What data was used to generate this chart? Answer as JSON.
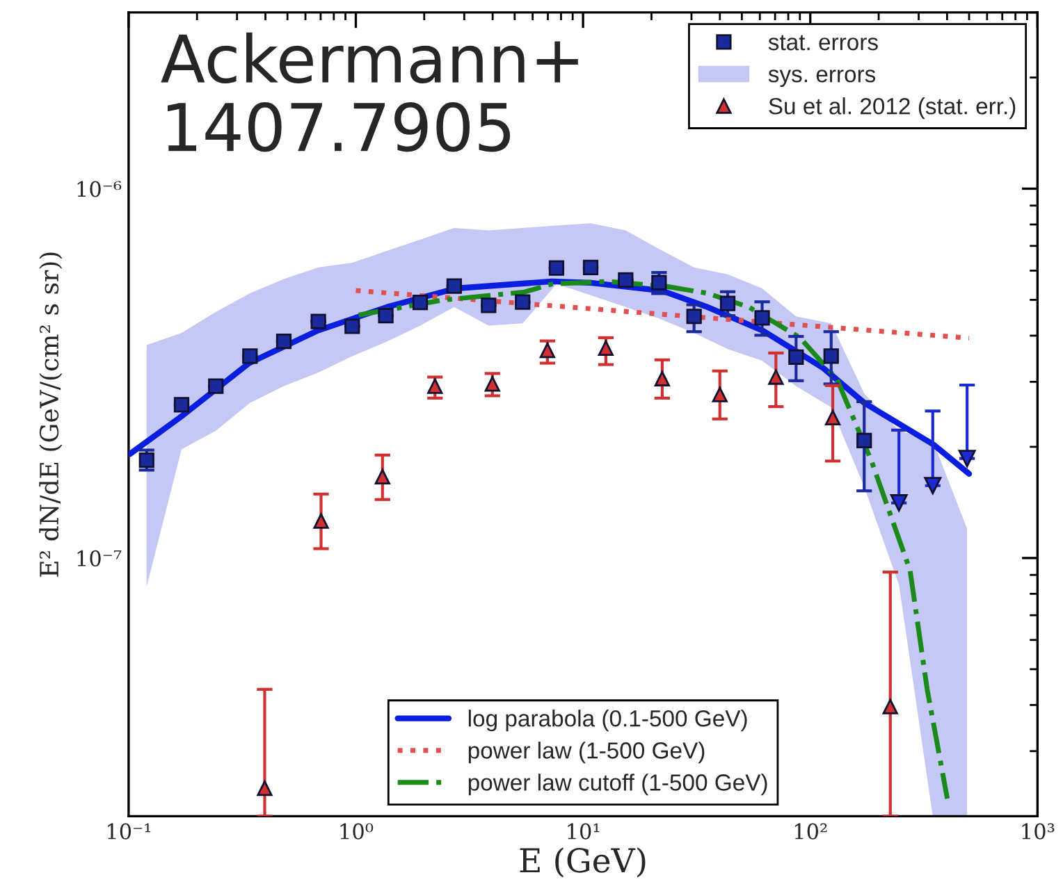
{
  "chart_data": {
    "type": "scatter",
    "xlabel": "E (GeV)",
    "ylabel": "E² dN/dE (GeV/(cm² s sr))",
    "log": "xy",
    "xlim": [
      0.1,
      1000
    ],
    "ylim": [
      2e-08,
      3e-06
    ],
    "xticks": [
      {
        "value": 0.1,
        "label": "10⁻¹"
      },
      {
        "value": 1,
        "label": "10⁰"
      },
      {
        "value": 10,
        "label": "10¹"
      },
      {
        "value": 100,
        "label": "10²"
      },
      {
        "value": 1000,
        "label": "10³"
      }
    ],
    "yticks": [
      {
        "value": 1e-07,
        "label": "10⁻⁷"
      },
      {
        "value": 1e-06,
        "label": "10⁻⁶"
      }
    ],
    "grid": false,
    "legend": [
      "top right",
      "bottom"
    ],
    "annotations": [
      "Ackermann+\n1407.7905"
    ],
    "series": [
      {
        "name": "stat. errors",
        "type": "scatter",
        "marker": "square",
        "color": "#1a2a9c",
        "x": [
          0.12,
          0.171,
          0.242,
          0.342,
          0.482,
          0.684,
          0.964,
          1.355,
          1.92,
          2.71,
          3.84,
          5.42,
          7.64,
          10.8,
          15.4,
          21.6,
          30.8,
          43.3,
          61.4,
          86.6,
          123.6,
          172.7
        ],
        "values": [
          1.84e-07,
          2.6e-07,
          2.92e-07,
          3.52e-07,
          3.86e-07,
          4.37e-07,
          4.24e-07,
          4.53e-07,
          4.92e-07,
          5.45e-07,
          4.83e-07,
          4.93e-07,
          6.1e-07,
          6.12e-07,
          5.66e-07,
          5.57e-07,
          4.51e-07,
          4.89e-07,
          4.47e-07,
          3.5e-07,
          3.52e-07,
          2.08e-07
        ],
        "errors": [
          [
            1.73e-07,
            1.96e-07
          ],
          null,
          null,
          null,
          null,
          null,
          null,
          null,
          null,
          null,
          null,
          null,
          null,
          null,
          null,
          [
            5.2e-07,
            5.93e-07
          ],
          [
            4.1e-07,
            4.85e-07
          ],
          [
            4.53e-07,
            5.26e-07
          ],
          [
            4.01e-07,
            4.94e-07
          ],
          [
            3.02e-07,
            3.98e-07
          ],
          [
            2.96e-07,
            4.1e-07
          ],
          [
            1.52e-07,
            2.65e-07
          ]
        ]
      },
      {
        "marker": "triangle",
        "color": "#1a2ad0",
        "x": [
          245.6,
          346,
          490
        ],
        "values": [
          1.41e-07,
          1.57e-07,
          1.86e-07
        ],
        "errors": [
          [
            1.41e-07,
            2.22e-07
          ],
          [
            1.57e-07,
            2.5e-07
          ],
          [
            1.86e-07,
            2.94e-07
          ]
        ]
      },
      {
        "name": "sys. errors",
        "type": "area",
        "color": "#c5c8f5",
        "x": [
          0.12,
          0.171,
          0.242,
          0.342,
          0.482,
          0.684,
          0.964,
          1.355,
          1.92,
          2.71,
          3.84,
          5.42,
          7.64,
          10.8,
          15.4,
          21.6,
          30.8,
          43.3,
          61.4,
          86.6,
          123.6,
          172.7,
          245.6,
          346,
          490
        ],
        "values": [
          null,
          null,
          null,
          null,
          null,
          null,
          null,
          null,
          null,
          null,
          null,
          null,
          null,
          null,
          null,
          null,
          null,
          null,
          null,
          null,
          null,
          null,
          null,
          null,
          null
        ],
        "lower": [
          8.36e-08,
          1.97e-07,
          2.21e-07,
          2.63e-07,
          2.92e-07,
          3.18e-07,
          3.52e-07,
          3.84e-07,
          4.26e-07,
          4.78e-07,
          4.26e-07,
          4.32e-07,
          5.52e-07,
          5.15e-07,
          4.78e-07,
          4.45e-07,
          4.07e-07,
          3.68e-07,
          3.42e-07,
          2.92e-07,
          2.56e-07,
          1.56e-07,
          8.47e-08,
          2e-08,
          2e-08
        ],
        "upper": [
          3.77e-07,
          4.07e-07,
          4.64e-07,
          5.21e-07,
          5.69e-07,
          6.12e-07,
          6.3e-07,
          6.77e-07,
          7.28e-07,
          7.83e-07,
          7.71e-07,
          7.83e-07,
          7.95e-07,
          8.06e-07,
          7.71e-07,
          6.87e-07,
          6.12e-07,
          5.86e-07,
          5.37e-07,
          4.51e-07,
          4.32e-07,
          2.79e-07,
          2.21e-07,
          2.08e-07,
          1.2e-07
        ]
      },
      {
        "name": "Su et al. 2012 (stat. err.)",
        "type": "scatter",
        "marker": "triangle",
        "color": "#d03030",
        "x": [
          0.397,
          0.703,
          1.31,
          2.23,
          3.99,
          6.97,
          12.6,
          22.3,
          40.0,
          70.6,
          125.6,
          225
        ],
        "values": [
          2.38e-08,
          1.26e-07,
          1.66e-07,
          2.92e-07,
          2.96e-07,
          3.65e-07,
          3.7e-07,
          3.06e-07,
          2.77e-07,
          3.09e-07,
          2.4e-07,
          3.96e-08
        ],
        "errors": [
          [
            2e-08,
            4.41e-08
          ],
          [
            1.06e-07,
            1.49e-07
          ],
          [
            1.44e-07,
            1.9e-07
          ],
          [
            2.71e-07,
            3.09e-07
          ],
          [
            2.75e-07,
            3.16e-07
          ],
          [
            3.37e-07,
            3.87e-07
          ],
          [
            3.34e-07,
            3.95e-07
          ],
          [
            2.71e-07,
            3.44e-07
          ],
          [
            2.38e-07,
            3.21e-07
          ],
          [
            2.57e-07,
            3.59e-07
          ],
          [
            1.83e-07,
            2.93e-07
          ],
          [
            2e-08,
            9.16e-08
          ]
        ]
      },
      {
        "name": "log parabola (0.1-500 GeV)",
        "type": "line",
        "line_style": "solid",
        "color": "#0a1ee0",
        "x": [
          0.101,
          0.171,
          0.339,
          0.681,
          1.37,
          2.75,
          7.3,
          10.8,
          22.3,
          35.3,
          61.7,
          114,
          173,
          348,
          500
        ],
        "values": [
          1.91e-07,
          2.42e-07,
          3.37e-07,
          4.13e-07,
          4.78e-07,
          5.37e-07,
          5.61e-07,
          5.56e-07,
          5.29e-07,
          4.78e-07,
          4.13e-07,
          3.27e-07,
          2.63e-07,
          2.03e-07,
          1.69e-07
        ]
      },
      {
        "name": "power law (1-500 GeV)",
        "type": "line",
        "line_style": "dotted",
        "color": "#e05050",
        "x": [
          1.0,
          500
        ],
        "values": [
          5.3e-07,
          3.94e-07
        ]
      },
      {
        "name": "power law cutoff (1-500 GeV)",
        "type": "line",
        "line_style": "dashdot",
        "color": "#1a8a1a",
        "x": [
          1.03,
          2.39,
          5.52,
          7.3,
          12.8,
          23.2,
          35.3,
          53.7,
          90.0,
          131,
          186,
          275,
          327,
          401
        ],
        "values": [
          4.55e-07,
          4.99e-07,
          5.25e-07,
          5.52e-07,
          5.61e-07,
          5.44e-07,
          5.21e-07,
          4.78e-07,
          3.95e-07,
          3.05e-07,
          1.83e-07,
          9.25e-08,
          4.41e-08,
          2.23e-08
        ]
      }
    ]
  }
}
